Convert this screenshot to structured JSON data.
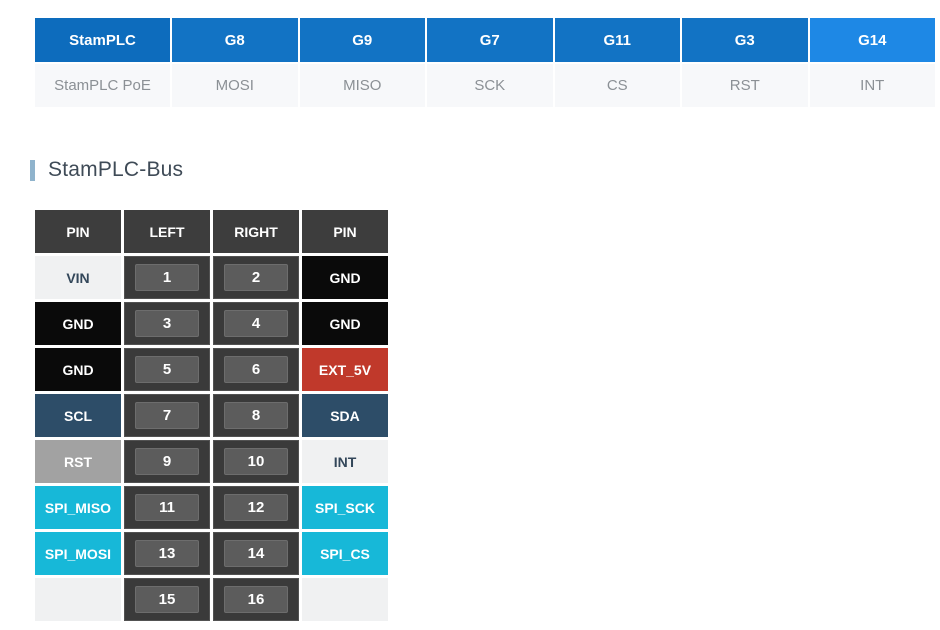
{
  "top_table": {
    "headers": [
      "StamPLC",
      "G8",
      "G9",
      "G7",
      "G11",
      "G3",
      "G14"
    ],
    "values": [
      "StamPLC PoE",
      "MOSI",
      "MISO",
      "SCK",
      "CS",
      "RST",
      "INT"
    ]
  },
  "section": {
    "title": "StamPLC-Bus"
  },
  "pin_table": {
    "headers": [
      "PIN",
      "LEFT",
      "RIGHT",
      "PIN"
    ],
    "rows": [
      {
        "left_pin": "VIN",
        "left_num": "1",
        "right_num": "2",
        "right_pin": "GND"
      },
      {
        "left_pin": "GND",
        "left_num": "3",
        "right_num": "4",
        "right_pin": "GND"
      },
      {
        "left_pin": "GND",
        "left_num": "5",
        "right_num": "6",
        "right_pin": "EXT_5V"
      },
      {
        "left_pin": "SCL",
        "left_num": "7",
        "right_num": "8",
        "right_pin": "SDA"
      },
      {
        "left_pin": "RST",
        "left_num": "9",
        "right_num": "10",
        "right_pin": "INT"
      },
      {
        "left_pin": "SPI_MISO",
        "left_num": "11",
        "right_num": "12",
        "right_pin": "SPI_SCK"
      },
      {
        "left_pin": "SPI_MOSI",
        "left_num": "13",
        "right_num": "14",
        "right_pin": "SPI_CS"
      },
      {
        "left_pin": "",
        "left_num": "15",
        "right_num": "16",
        "right_pin": ""
      }
    ]
  },
  "colors": {
    "header_blue": "#1273c4",
    "header_blue_dark": "#0d6cbd",
    "header_blue_light": "#1e88e5",
    "accent_bar": "#8fb3cc",
    "table_header_dark": "#3d3d3d",
    "pin_black": "#0a0a0a",
    "pin_red": "#c0392b",
    "pin_steel_blue": "#2d4d68",
    "pin_gray": "#a2a2a2",
    "pin_cyan": "#17b8d8",
    "pin_light": "#f0f1f2"
  }
}
